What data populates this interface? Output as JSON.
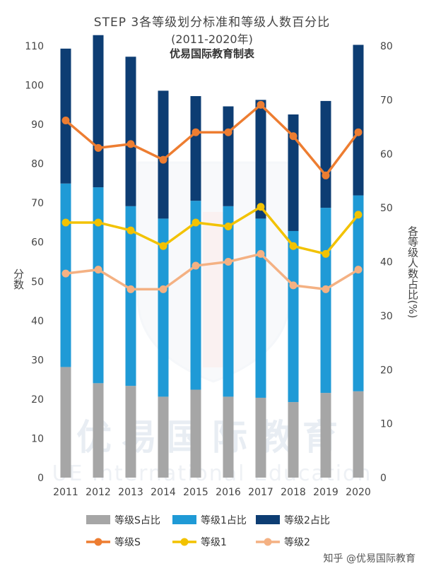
{
  "chart_data": {
    "type": "bar",
    "title": "STEP 3各等级划分标准和等级人数百分比",
    "subtitle": "(2011-2020年)",
    "credit": "优易国际教育制表",
    "ylabel_left": "分数",
    "ylabel_right": "各等级人数占比(%)",
    "categories": [
      "2011",
      "2012",
      "2013",
      "2014",
      "2015",
      "2016",
      "2017",
      "2018",
      "2019",
      "2020"
    ],
    "ylim_left": [
      0,
      110
    ],
    "ylim_right": [
      0,
      80
    ],
    "left_ticks": [
      0,
      10,
      20,
      30,
      40,
      50,
      60,
      70,
      80,
      90,
      100,
      110
    ],
    "right_ticks": [
      0,
      10,
      20,
      30,
      40,
      50,
      60,
      70,
      80
    ],
    "stacked_series": [
      {
        "name": "等级S占比",
        "color": "#a6a6a6",
        "values": [
          20.5,
          17.5,
          17.0,
          15.0,
          16.3,
          15.0,
          14.8,
          14.0,
          15.7,
          16.0
        ]
      },
      {
        "name": "等级1占比",
        "color": "#1f9ad6",
        "values": [
          34.0,
          36.3,
          33.3,
          33.0,
          35.0,
          35.3,
          33.2,
          31.7,
          34.3,
          36.3
        ]
      },
      {
        "name": "等级2占比",
        "color": "#0d3d73",
        "values": [
          25.0,
          28.2,
          27.7,
          23.7,
          19.4,
          18.5,
          22.0,
          21.6,
          19.8,
          27.9
        ]
      }
    ],
    "line_series": [
      {
        "name": "等级S",
        "color": "#ed7d31",
        "values": [
          91,
          84,
          85,
          81,
          88,
          88,
          95,
          87,
          77,
          88
        ]
      },
      {
        "name": "等级1",
        "color": "#f2c200",
        "values": [
          65,
          65,
          63,
          59,
          65,
          64,
          69,
          59,
          57,
          67
        ]
      },
      {
        "name": "等级2",
        "color": "#f4b183",
        "values": [
          52,
          53,
          48,
          48,
          54,
          55,
          57,
          49,
          48,
          53
        ]
      }
    ],
    "legend_position": "bottom"
  },
  "watermark": {
    "cn": "优易国际教育",
    "en": "UE International Education"
  },
  "footer": {
    "source": "知乎 @优易国际教育"
  }
}
